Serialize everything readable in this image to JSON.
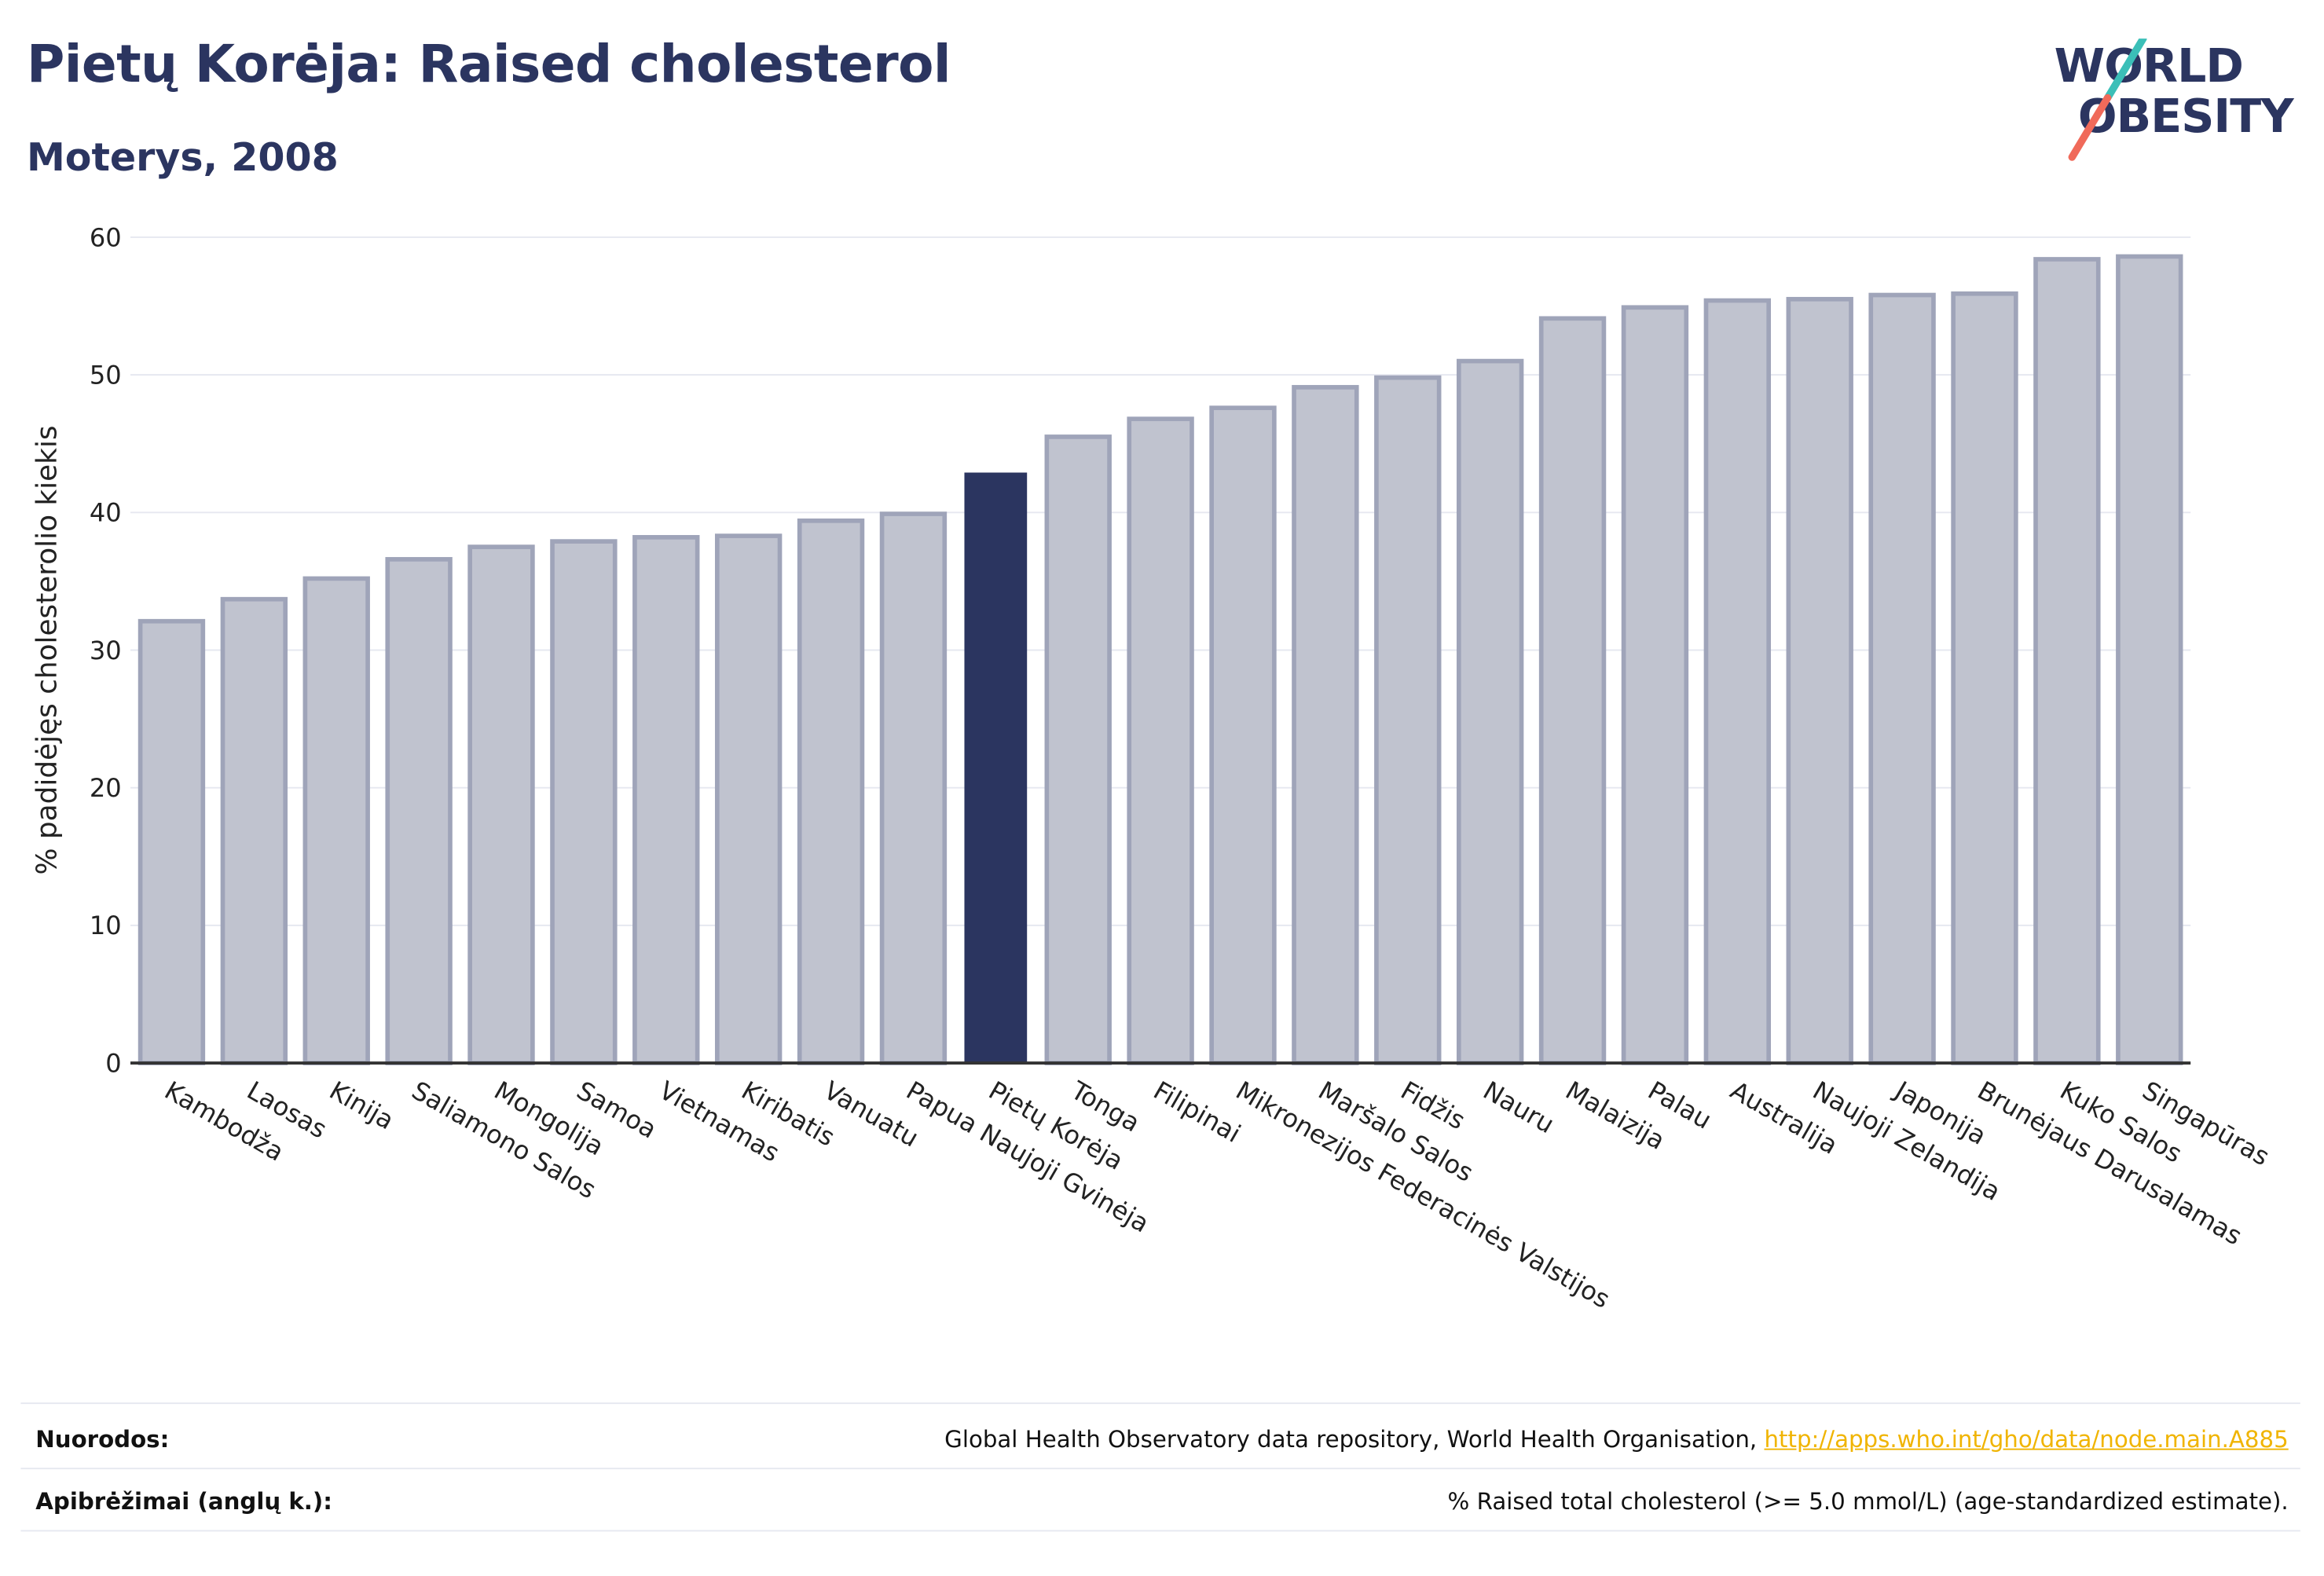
{
  "header": {
    "title": "Pietų Korėja: Raised cholesterol",
    "subtitle": "Moterys, 2008"
  },
  "logo": {
    "line1": "WORLD",
    "line2": "OBESITY",
    "colors": {
      "text": "#2b3560",
      "slash_teal": "#3bbfb8",
      "slash_coral": "#f06a5a"
    }
  },
  "chart_data": {
    "type": "bar",
    "ylabel": "% padidėjęs cholesterolio kiekis",
    "xlabel": "",
    "ylim": [
      0,
      60
    ],
    "yticks": [
      0,
      10,
      20,
      30,
      40,
      50,
      60
    ],
    "grid": true,
    "categories": [
      "Kambodža",
      "Laosas",
      "Kinija",
      "Saliamono Salos",
      "Mongolija",
      "Samoa",
      "Vietnamas",
      "Kiribatis",
      "Vanuatu",
      "Papua Naujoji Gvinėja",
      "Pietų Korėja",
      "Tonga",
      "Filipinai",
      "Mikronezijos Federacinės Valstijos",
      "Maršalo Salos",
      "Fidžis",
      "Nauru",
      "Malaizija",
      "Palau",
      "Australija",
      "Naujoji Zelandija",
      "Japonija",
      "Brunėjaus Darusalamas",
      "Kuko Salos",
      "Singapūras"
    ],
    "values": [
      32.1,
      33.7,
      35.2,
      36.6,
      37.5,
      37.9,
      38.2,
      38.3,
      39.4,
      39.9,
      42.9,
      45.5,
      46.8,
      47.6,
      49.1,
      49.8,
      51.0,
      54.1,
      54.9,
      55.4,
      55.5,
      55.8,
      55.9,
      58.4,
      58.6
    ],
    "highlight": "Pietų Korėja",
    "colors": {
      "bar": "#c0c3cf",
      "bar_edge": "#9fa4b9",
      "highlight": "#2b3560",
      "grid": "#e6e8f0",
      "axis": "#333333"
    }
  },
  "footer": {
    "references_label": "Nuorodos:",
    "references_text": "Global Health Observatory data repository, World Health Organisation, ",
    "references_link": "http://apps.who.int/gho/data/node.main.A885",
    "definitions_label": "Apibrėžimai (anglų k.):",
    "definitions_text": "% Raised total cholesterol (>= 5.0 mmol/L) (age-standardized estimate)."
  }
}
